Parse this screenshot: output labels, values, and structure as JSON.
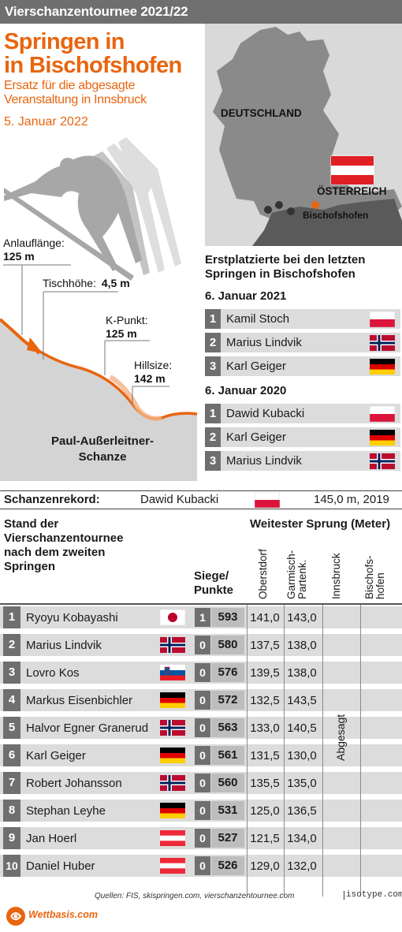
{
  "header": {
    "series_title": "Vierschanzentournee 2021/22"
  },
  "title": {
    "line1": "Springen in",
    "line2": "in Bischofshofen"
  },
  "subtitle": {
    "line1": "Ersatz für die abgesagte",
    "line2": "Veranstaltung in Innsbruck"
  },
  "date": "5. Januar 2022",
  "hill": {
    "anlauf_label": "Anlauflänge:",
    "anlauf_value": "125 m",
    "tisch_label": "Tischhöhe:",
    "tisch_value": "4,5 m",
    "kpunkt_label": "K-Punkt:",
    "kpunkt_value": "125 m",
    "hillsize_label": "Hillsize:",
    "hillsize_value": "142 m",
    "venue_line1": "Paul-Außerleitner-",
    "venue_line2": "Schanze"
  },
  "map": {
    "germany": "DEUTSCHLAND",
    "austria": "ÖSTERREICH",
    "city": "Bischofshofen"
  },
  "winners": {
    "title_line1": "Erstplatzierte bei den letzten",
    "title_line2": "Springen in Bischofshofen",
    "groups": [
      {
        "year": "6. Januar 2021",
        "rows": [
          {
            "rank": "1",
            "name": "Kamil Stoch",
            "flag": "poland"
          },
          {
            "rank": "2",
            "name": "Marius Lindvik",
            "flag": "norway"
          },
          {
            "rank": "3",
            "name": "Karl Geiger",
            "flag": "germany"
          }
        ]
      },
      {
        "year": "6. Januar 2020",
        "rows": [
          {
            "rank": "1",
            "name": "Dawid Kubacki",
            "flag": "poland"
          },
          {
            "rank": "2",
            "name": "Karl Geiger",
            "flag": "germany"
          },
          {
            "rank": "3",
            "name": "Marius Lindvik",
            "flag": "norway"
          }
        ]
      }
    ]
  },
  "record": {
    "label": "Schanzenrekord:",
    "holder": "Dawid Kubacki",
    "flag": "poland",
    "value": "145,0 m, 2019"
  },
  "standings": {
    "head_line1": "Stand der",
    "head_line2": "Vierschanzentournee",
    "head_line3": "nach dem zweiten",
    "head_line4": "Springen",
    "siege_line1": "Siege/",
    "siege_line2": "Punkte",
    "jump_title": "Weitester Sprung (Meter)",
    "col_oberstdorf": "Oberstdorf",
    "col_garmisch_1": "Garmisch-",
    "col_garmisch_2": "Partenk.",
    "col_innsbruck": "Innsbruck",
    "col_bischofs_1": "Bischofs-",
    "col_bischofs_2": "hofen",
    "cancelled": "Abgesagt",
    "rows": [
      {
        "rank": "1",
        "name": "Ryoyu Kobayashi",
        "flag": "japan",
        "wins": "1",
        "points": "593",
        "oberstdorf": "141,0",
        "garmisch": "143,0"
      },
      {
        "rank": "2",
        "name": "Marius Lindvik",
        "flag": "norway",
        "wins": "0",
        "points": "580",
        "oberstdorf": "137,5",
        "garmisch": "138,0"
      },
      {
        "rank": "3",
        "name": "Lovro Kos",
        "flag": "slovenia",
        "wins": "0",
        "points": "576",
        "oberstdorf": "139,5",
        "garmisch": "138,0"
      },
      {
        "rank": "4",
        "name": "Markus Eisenbichler",
        "flag": "germany",
        "wins": "0",
        "points": "572",
        "oberstdorf": "132,5",
        "garmisch": "143,5"
      },
      {
        "rank": "5",
        "name": "Halvor Egner Granerud",
        "flag": "norway",
        "wins": "0",
        "points": "563",
        "oberstdorf": "133,0",
        "garmisch": "140,5"
      },
      {
        "rank": "6",
        "name": "Karl Geiger",
        "flag": "germany",
        "wins": "0",
        "points": "561",
        "oberstdorf": "131,5",
        "garmisch": "130,0"
      },
      {
        "rank": "7",
        "name": "Robert Johansson",
        "flag": "norway",
        "wins": "0",
        "points": "560",
        "oberstdorf": "135,5",
        "garmisch": "135,0"
      },
      {
        "rank": "8",
        "name": "Stephan Leyhe",
        "flag": "germany",
        "wins": "0",
        "points": "531",
        "oberstdorf": "125,0",
        "garmisch": "136,5"
      },
      {
        "rank": "9",
        "name": "Jan Hoerl",
        "flag": "austria",
        "wins": "0",
        "points": "527",
        "oberstdorf": "121,5",
        "garmisch": "134,0"
      },
      {
        "rank": "10",
        "name": "Daniel Huber",
        "flag": "austria",
        "wins": "0",
        "points": "526",
        "oberstdorf": "129,0",
        "garmisch": "132,0"
      }
    ]
  },
  "sources": "Quellen: FIS, skispringen.com, vierschanzentournee.com",
  "credit": "isotype.com",
  "brand": "Wettbasis.com",
  "colors": {
    "accent": "#e8650f",
    "dark_grey": "#6f6f6f",
    "row_grey": "#dcdcdc",
    "map_grey": "#d9d9d9"
  }
}
